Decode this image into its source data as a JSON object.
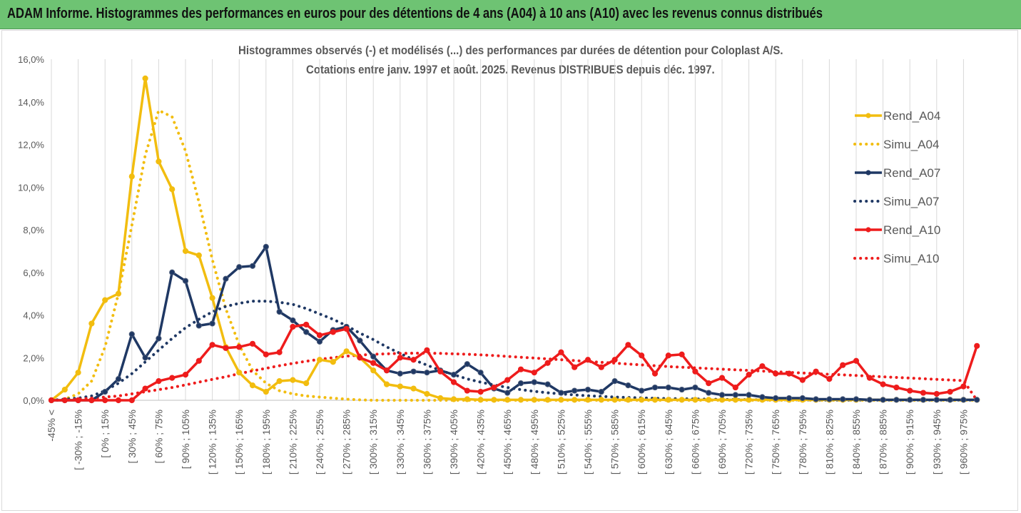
{
  "banner": {
    "title": "ADAM Informe. Histogrammes des performances en euros pour des détentions de 4 ans (A04) à 10 ans (A10) avec les revenus connus distribués"
  },
  "chart_data": {
    "type": "line",
    "title": "Histogrammes observés (-) et modélisés (...) des performances par durées de détention pour Coloplast A/S.",
    "subtitle": "Cotations entre janv. 1997 et août. 2025. Revenus DISTRIBUES depuis déc. 1997.",
    "xlabel": "",
    "ylabel": "",
    "ylim": [
      0,
      16
    ],
    "y_ticks": [
      "0,0%",
      "2,0%",
      "4,0%",
      "6,0%",
      "8,0%",
      "10,0%",
      "12,0%",
      "14,0%",
      "16,0%"
    ],
    "x_tick_labels": [
      "-45% <",
      "[ -30% ; -15%",
      "[ 0% ; 15%",
      "[ 30% ; 45%",
      "[ 60% ; 75%",
      "[ 90% ; 105%",
      "[ 120% ; 135%",
      "[ 150% ; 165%",
      "[ 180% ; 195%",
      "[ 210% ; 225%",
      "[ 240% ; 255%",
      "[ 270% ; 285%",
      "[ 300% ; 315%",
      "[ 330% ; 345%",
      "[ 360% ; 375%",
      "[ 390% ; 405%",
      "[ 420% ; 435%",
      "[ 450% ; 465%",
      "[ 480% ; 495%",
      "[ 510% ; 525%",
      "[ 540% ; 555%",
      "[ 570% ; 585%",
      "[ 600% ; 615%",
      "[ 630% ; 645%",
      "[ 660% ; 675%",
      "[ 690% ; 705%",
      "[ 720% ; 735%",
      "[ 750% ; 765%",
      "[ 780% ; 795%",
      "[ 810% ; 825%",
      "[ 840% ; 855%",
      "[ 870% ; 885%",
      "[ 900% ; 915%",
      "[ 930% ; 945%",
      "[ 960% ; 975%"
    ],
    "grid": "vertical",
    "legend_position": "right",
    "series": [
      {
        "name": "Rend_A04",
        "style": "solid",
        "color": "#f2bd0f",
        "values": [
          0.0,
          0.5,
          1.3,
          3.6,
          4.7,
          5.0,
          10.5,
          15.1,
          11.2,
          9.9,
          7.0,
          6.8,
          4.8,
          2.5,
          1.3,
          0.7,
          0.4,
          0.9,
          0.95,
          0.8,
          1.9,
          1.8,
          2.3,
          2.0,
          1.4,
          0.75,
          0.65,
          0.55,
          0.3,
          0.1,
          0.05,
          0.05,
          0.02,
          0.02,
          0.02,
          0.02,
          0.02,
          0.02,
          0.02,
          0.02,
          0.02,
          0.02,
          0.02,
          0.02,
          0.02,
          0.02,
          0.02,
          0.02,
          0.02,
          0.02,
          0.02,
          0.02,
          0.02,
          0.02,
          0.02,
          0.02,
          0.02,
          0.02,
          0.02,
          0.02,
          0.02,
          0.02,
          0.02,
          0.02,
          0.02,
          0.02,
          0.02,
          0.02,
          0.02,
          0.02
        ]
      },
      {
        "name": "Simu_A04",
        "style": "dotted",
        "color": "#f2bd0f",
        "values": [
          0.0,
          0.05,
          0.3,
          0.9,
          2.5,
          5.0,
          8.2,
          11.5,
          13.6,
          13.3,
          11.7,
          9.3,
          6.6,
          4.3,
          2.6,
          1.4,
          0.8,
          0.45,
          0.3,
          0.2,
          0.15,
          0.1,
          0.05,
          0.02,
          0.0,
          0.0,
          0.0,
          0.0,
          0.0,
          0.0,
          0.0,
          0.0,
          0.0,
          0.0,
          0.0,
          0.0,
          0.0,
          0.0,
          0.0,
          0.0,
          0.0,
          0.0,
          0.0,
          0.0,
          0.0,
          0.0,
          0.0,
          0.0,
          0.0,
          0.0,
          0.0,
          0.0,
          0.0,
          0.0,
          0.0,
          0.0,
          0.0,
          0.0,
          0.0,
          0.0,
          0.0,
          0.0,
          0.0,
          0.0,
          0.0,
          0.0,
          0.0,
          0.0,
          0.0,
          0.0
        ]
      },
      {
        "name": "Rend_A07",
        "style": "solid",
        "color": "#1f3864",
        "values": [
          0.0,
          0.0,
          0.0,
          0.0,
          0.4,
          1.0,
          3.1,
          2.0,
          2.9,
          6.0,
          5.6,
          3.5,
          3.6,
          5.7,
          6.25,
          6.3,
          7.2,
          4.15,
          3.75,
          3.2,
          2.75,
          3.3,
          3.45,
          2.8,
          2.05,
          1.4,
          1.25,
          1.35,
          1.3,
          1.4,
          1.2,
          1.7,
          1.3,
          0.55,
          0.35,
          0.8,
          0.85,
          0.75,
          0.35,
          0.45,
          0.5,
          0.4,
          0.9,
          0.7,
          0.45,
          0.6,
          0.6,
          0.5,
          0.6,
          0.35,
          0.25,
          0.25,
          0.25,
          0.15,
          0.1,
          0.1,
          0.1,
          0.05,
          0.05,
          0.05,
          0.05,
          0.02,
          0.02,
          0.02,
          0.02,
          0.02,
          0.02,
          0.02,
          0.02,
          0.02
        ]
      },
      {
        "name": "Simu_A07",
        "style": "dotted",
        "color": "#1f3864",
        "values": [
          0.0,
          0.05,
          0.1,
          0.2,
          0.45,
          0.8,
          1.25,
          1.8,
          2.35,
          2.9,
          3.4,
          3.8,
          4.15,
          4.4,
          4.55,
          4.65,
          4.65,
          4.6,
          4.5,
          4.3,
          4.05,
          3.8,
          3.5,
          3.15,
          2.85,
          2.5,
          2.2,
          1.9,
          1.65,
          1.4,
          1.2,
          1.0,
          0.85,
          0.72,
          0.6,
          0.5,
          0.42,
          0.35,
          0.3,
          0.25,
          0.21,
          0.18,
          0.15,
          0.13,
          0.11,
          0.09,
          0.08,
          0.07,
          0.06,
          0.05,
          0.04,
          0.03,
          0.03,
          0.02,
          0.02,
          0.02,
          0.02,
          0.01,
          0.01,
          0.01,
          0.01,
          0.01,
          0.01,
          0.01,
          0.01,
          0.01,
          0.01,
          0.01,
          0.01,
          0.01
        ]
      },
      {
        "name": "Rend_A10",
        "style": "solid",
        "color": "#ee1c1c",
        "values": [
          0.0,
          0.0,
          0.0,
          0.0,
          0.0,
          0.0,
          0.0,
          0.55,
          0.9,
          1.05,
          1.2,
          1.85,
          2.6,
          2.45,
          2.5,
          2.65,
          2.15,
          2.25,
          3.45,
          3.55,
          3.05,
          3.2,
          3.35,
          2.0,
          1.75,
          1.4,
          2.0,
          1.9,
          2.35,
          1.35,
          0.85,
          0.45,
          0.4,
          0.6,
          0.95,
          1.45,
          1.3,
          1.75,
          2.25,
          1.55,
          1.9,
          1.55,
          1.9,
          2.6,
          2.1,
          1.25,
          2.1,
          2.15,
          1.35,
          0.8,
          1.05,
          0.6,
          1.2,
          1.6,
          1.25,
          1.25,
          0.95,
          1.35,
          1.0,
          1.65,
          1.85,
          1.05,
          0.75,
          0.6,
          0.45,
          0.35,
          0.3,
          0.4,
          0.65,
          2.55
        ]
      },
      {
        "name": "Simu_A10",
        "style": "dotted",
        "color": "#ee1c1c",
        "values": [
          0.0,
          0.0,
          0.05,
          0.1,
          0.15,
          0.2,
          0.3,
          0.4,
          0.5,
          0.6,
          0.72,
          0.85,
          0.98,
          1.1,
          1.25,
          1.38,
          1.5,
          1.62,
          1.73,
          1.83,
          1.92,
          2.0,
          2.07,
          2.12,
          2.16,
          2.18,
          2.2,
          2.21,
          2.21,
          2.2,
          2.18,
          2.16,
          2.13,
          2.1,
          2.06,
          2.02,
          1.98,
          1.94,
          1.9,
          1.86,
          1.82,
          1.78,
          1.74,
          1.7,
          1.66,
          1.62,
          1.58,
          1.55,
          1.52,
          1.49,
          1.46,
          1.43,
          1.4,
          1.37,
          1.34,
          1.31,
          1.28,
          1.25,
          1.22,
          1.19,
          1.16,
          1.13,
          1.1,
          1.07,
          1.04,
          1.01,
          0.98,
          0.95,
          0.92,
          0.0
        ]
      }
    ]
  }
}
